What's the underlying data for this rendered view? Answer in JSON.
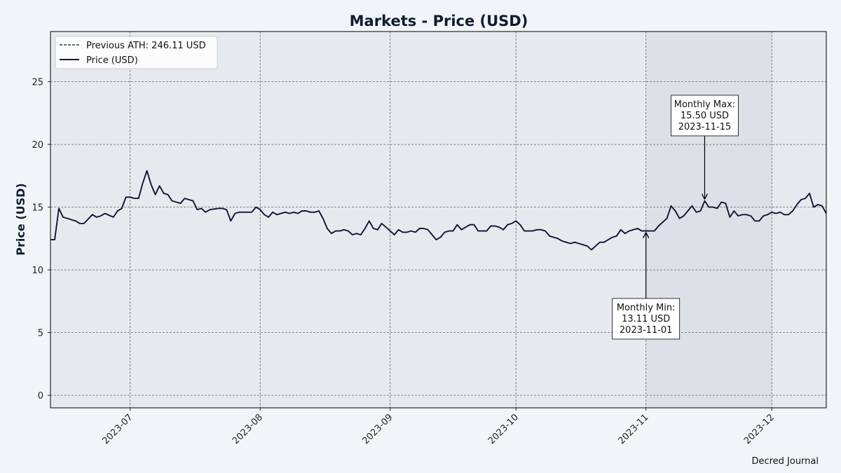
{
  "page": {
    "credit": "Decred Journal"
  },
  "chart_data": {
    "type": "line",
    "title": "Markets - Price (USD)",
    "xlabel": "",
    "ylabel": "Price (USD)",
    "xlim": [
      "2023-06-12",
      "2023-12-14"
    ],
    "ylim": [
      -1,
      29
    ],
    "y_ticks": [
      0,
      5,
      10,
      15,
      20,
      25
    ],
    "x_ticks": [
      "2023-07-01",
      "2023-08-01",
      "2023-09-01",
      "2023-10-01",
      "2023-11-01",
      "2023-12-01"
    ],
    "x_tick_labels": [
      "2023-07",
      "2023-08",
      "2023-09",
      "2023-10",
      "2023-11",
      "2023-12"
    ],
    "grid": true,
    "legend_position": "top-left",
    "highlight_range": [
      "2023-11-01",
      "2023-12-01"
    ],
    "reference_line": {
      "name": "Previous ATH: 246.11 USD",
      "value": 246.11,
      "style": "dashed"
    },
    "series": [
      {
        "name": "Price (USD)",
        "color": "#0d1633",
        "points": [
          [
            "2023-06-12",
            12.4
          ],
          [
            "2023-06-13",
            12.4
          ],
          [
            "2023-06-14",
            14.9
          ],
          [
            "2023-06-15",
            14.2
          ],
          [
            "2023-06-17",
            14.0
          ],
          [
            "2023-06-18",
            13.9
          ],
          [
            "2023-06-19",
            13.7
          ],
          [
            "2023-06-20",
            13.7
          ],
          [
            "2023-06-22",
            14.4
          ],
          [
            "2023-06-23",
            14.2
          ],
          [
            "2023-06-24",
            14.3
          ],
          [
            "2023-06-25",
            14.5
          ],
          [
            "2023-06-27",
            14.2
          ],
          [
            "2023-06-28",
            14.7
          ],
          [
            "2023-06-29",
            14.9
          ],
          [
            "2023-06-30",
            15.8
          ],
          [
            "2023-07-01",
            15.8
          ],
          [
            "2023-07-02",
            15.7
          ],
          [
            "2023-07-03",
            15.7
          ],
          [
            "2023-07-04",
            16.9
          ],
          [
            "2023-07-05",
            17.9
          ],
          [
            "2023-07-06",
            16.8
          ],
          [
            "2023-07-07",
            16.0
          ],
          [
            "2023-07-08",
            16.7
          ],
          [
            "2023-07-09",
            16.1
          ],
          [
            "2023-07-10",
            16.0
          ],
          [
            "2023-07-11",
            15.5
          ],
          [
            "2023-07-12",
            15.4
          ],
          [
            "2023-07-13",
            15.3
          ],
          [
            "2023-07-14",
            15.7
          ],
          [
            "2023-07-15",
            15.6
          ],
          [
            "2023-07-16",
            15.5
          ],
          [
            "2023-07-17",
            14.8
          ],
          [
            "2023-07-18",
            14.9
          ],
          [
            "2023-07-19",
            14.6
          ],
          [
            "2023-07-20",
            14.8
          ],
          [
            "2023-07-22",
            14.9
          ],
          [
            "2023-07-23",
            14.9
          ],
          [
            "2023-07-24",
            14.8
          ],
          [
            "2023-07-25",
            13.9
          ],
          [
            "2023-07-26",
            14.5
          ],
          [
            "2023-07-27",
            14.6
          ],
          [
            "2023-07-28",
            14.6
          ],
          [
            "2023-07-29",
            14.6
          ],
          [
            "2023-07-30",
            14.6
          ],
          [
            "2023-07-31",
            15.0
          ],
          [
            "2023-08-01",
            14.8
          ],
          [
            "2023-08-02",
            14.4
          ],
          [
            "2023-08-03",
            14.2
          ],
          [
            "2023-08-04",
            14.6
          ],
          [
            "2023-08-05",
            14.4
          ],
          [
            "2023-08-06",
            14.5
          ],
          [
            "2023-08-07",
            14.6
          ],
          [
            "2023-08-08",
            14.5
          ],
          [
            "2023-08-09",
            14.6
          ],
          [
            "2023-08-10",
            14.5
          ],
          [
            "2023-08-11",
            14.7
          ],
          [
            "2023-08-12",
            14.7
          ],
          [
            "2023-08-13",
            14.6
          ],
          [
            "2023-08-14",
            14.6
          ],
          [
            "2023-08-15",
            14.7
          ],
          [
            "2023-08-16",
            14.1
          ],
          [
            "2023-08-17",
            13.3
          ],
          [
            "2023-08-18",
            12.9
          ],
          [
            "2023-08-19",
            13.1
          ],
          [
            "2023-08-20",
            13.1
          ],
          [
            "2023-08-21",
            13.2
          ],
          [
            "2023-08-22",
            13.1
          ],
          [
            "2023-08-23",
            12.8
          ],
          [
            "2023-08-24",
            12.9
          ],
          [
            "2023-08-25",
            12.8
          ],
          [
            "2023-08-26",
            13.3
          ],
          [
            "2023-08-27",
            13.9
          ],
          [
            "2023-08-28",
            13.3
          ],
          [
            "2023-08-29",
            13.2
          ],
          [
            "2023-08-30",
            13.7
          ],
          [
            "2023-08-31",
            13.4
          ],
          [
            "2023-09-01",
            13.1
          ],
          [
            "2023-09-02",
            12.8
          ],
          [
            "2023-09-03",
            13.2
          ],
          [
            "2023-09-04",
            13.0
          ],
          [
            "2023-09-05",
            13.0
          ],
          [
            "2023-09-06",
            13.1
          ],
          [
            "2023-09-07",
            13.0
          ],
          [
            "2023-09-08",
            13.3
          ],
          [
            "2023-09-09",
            13.3
          ],
          [
            "2023-09-10",
            13.2
          ],
          [
            "2023-09-11",
            12.8
          ],
          [
            "2023-09-12",
            12.4
          ],
          [
            "2023-09-13",
            12.6
          ],
          [
            "2023-09-14",
            13.0
          ],
          [
            "2023-09-15",
            13.1
          ],
          [
            "2023-09-16",
            13.1
          ],
          [
            "2023-09-17",
            13.6
          ],
          [
            "2023-09-18",
            13.2
          ],
          [
            "2023-09-19",
            13.4
          ],
          [
            "2023-09-20",
            13.6
          ],
          [
            "2023-09-21",
            13.6
          ],
          [
            "2023-09-22",
            13.1
          ],
          [
            "2023-09-23",
            13.1
          ],
          [
            "2023-09-24",
            13.1
          ],
          [
            "2023-09-25",
            13.5
          ],
          [
            "2023-09-26",
            13.5
          ],
          [
            "2023-09-27",
            13.4
          ],
          [
            "2023-09-28",
            13.2
          ],
          [
            "2023-09-29",
            13.6
          ],
          [
            "2023-09-30",
            13.7
          ],
          [
            "2023-10-01",
            13.9
          ],
          [
            "2023-10-02",
            13.6
          ],
          [
            "2023-10-03",
            13.1
          ],
          [
            "2023-10-04",
            13.1
          ],
          [
            "2023-10-05",
            13.1
          ],
          [
            "2023-10-06",
            13.2
          ],
          [
            "2023-10-07",
            13.2
          ],
          [
            "2023-10-08",
            13.1
          ],
          [
            "2023-10-09",
            12.7
          ],
          [
            "2023-10-10",
            12.6
          ],
          [
            "2023-10-11",
            12.5
          ],
          [
            "2023-10-12",
            12.3
          ],
          [
            "2023-10-13",
            12.2
          ],
          [
            "2023-10-14",
            12.1
          ],
          [
            "2023-10-15",
            12.2
          ],
          [
            "2023-10-16",
            12.1
          ],
          [
            "2023-10-17",
            12.0
          ],
          [
            "2023-10-18",
            11.9
          ],
          [
            "2023-10-19",
            11.6
          ],
          [
            "2023-10-20",
            11.9
          ],
          [
            "2023-10-21",
            12.2
          ],
          [
            "2023-10-22",
            12.2
          ],
          [
            "2023-10-23",
            12.4
          ],
          [
            "2023-10-24",
            12.6
          ],
          [
            "2023-10-25",
            12.7
          ],
          [
            "2023-10-26",
            13.2
          ],
          [
            "2023-10-27",
            12.9
          ],
          [
            "2023-10-28",
            13.1
          ],
          [
            "2023-10-29",
            13.2
          ],
          [
            "2023-10-30",
            13.3
          ],
          [
            "2023-10-31",
            13.1
          ],
          [
            "2023-11-01",
            13.11
          ],
          [
            "2023-11-02",
            13.1
          ],
          [
            "2023-11-03",
            13.1
          ],
          [
            "2023-11-04",
            13.5
          ],
          [
            "2023-11-05",
            13.8
          ],
          [
            "2023-11-06",
            14.1
          ],
          [
            "2023-11-07",
            15.1
          ],
          [
            "2023-11-08",
            14.7
          ],
          [
            "2023-11-09",
            14.1
          ],
          [
            "2023-11-10",
            14.3
          ],
          [
            "2023-11-11",
            14.7
          ],
          [
            "2023-11-12",
            15.1
          ],
          [
            "2023-11-13",
            14.6
          ],
          [
            "2023-11-14",
            14.7
          ],
          [
            "2023-11-15",
            15.5
          ],
          [
            "2023-11-16",
            15.0
          ],
          [
            "2023-11-17",
            15.0
          ],
          [
            "2023-11-18",
            14.9
          ],
          [
            "2023-11-19",
            15.4
          ],
          [
            "2023-11-20",
            15.3
          ],
          [
            "2023-11-21",
            14.2
          ],
          [
            "2023-11-22",
            14.7
          ],
          [
            "2023-11-23",
            14.3
          ],
          [
            "2023-11-24",
            14.4
          ],
          [
            "2023-11-25",
            14.4
          ],
          [
            "2023-11-26",
            14.3
          ],
          [
            "2023-11-27",
            13.9
          ],
          [
            "2023-11-28",
            13.9
          ],
          [
            "2023-11-29",
            14.3
          ],
          [
            "2023-11-30",
            14.4
          ],
          [
            "2023-12-01",
            14.6
          ],
          [
            "2023-12-02",
            14.5
          ],
          [
            "2023-12-03",
            14.6
          ],
          [
            "2023-12-04",
            14.4
          ],
          [
            "2023-12-05",
            14.4
          ],
          [
            "2023-12-06",
            14.7
          ],
          [
            "2023-12-07",
            15.2
          ],
          [
            "2023-12-08",
            15.6
          ],
          [
            "2023-12-09",
            15.7
          ],
          [
            "2023-12-10",
            16.1
          ],
          [
            "2023-12-11",
            15.0
          ],
          [
            "2023-12-12",
            15.2
          ],
          [
            "2023-12-13",
            15.1
          ],
          [
            "2023-12-14",
            14.5
          ]
        ]
      }
    ],
    "annotations": [
      {
        "text": "Monthly Max:\n15.50 USD\n2023-11-15",
        "x": "2023-11-15",
        "y": 15.5,
        "text_x": "2023-11-15",
        "text_y": 22.3
      },
      {
        "text": "Monthly Min:\n13.11 USD\n2023-11-01",
        "x": "2023-11-01",
        "y": 13.11,
        "text_x": "2023-11-01",
        "text_y": 6.1
      }
    ]
  }
}
